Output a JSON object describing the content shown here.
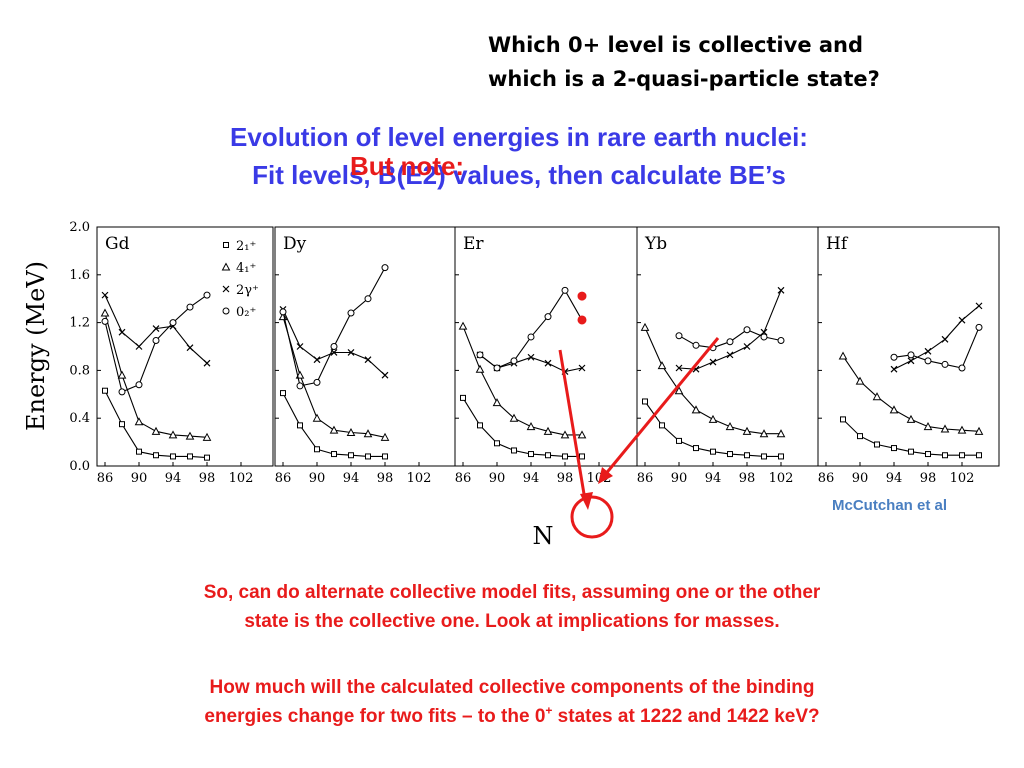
{
  "question": {
    "line1": "Which 0+ level is collective and",
    "line2": "which is a 2-quasi-particle state?"
  },
  "title": {
    "line1": "Evolution of level energies in rare earth nuclei:",
    "line2": "Fit levels, B(E2) values, then calculate BE’s"
  },
  "overlay_note": "But note:",
  "credit": "McCutchan et al",
  "paragraph1": {
    "line1": "So, can do alternate collective model fits, assuming one or the other",
    "line2": "state is the collective one.  Look at implications for masses."
  },
  "paragraph2": {
    "line1": "How much will the calculated collective components of the binding",
    "line2a": "energies change for two fits – to the 0",
    "sup": "+",
    "line2b": " states at 1222 and 1422 keV?"
  },
  "colors": {
    "title_blue": "#3a3ae6",
    "note_red": "#e81b1b",
    "credit_blue": "#4a7fc1"
  },
  "chart_data": {
    "type": "line",
    "ylabel": "Energy (MeV)",
    "xlabel": "N",
    "ylim": [
      0,
      2.0
    ],
    "yticks": [
      "2.0",
      "1.6",
      "1.2",
      "0.8",
      "0.4",
      "0.0"
    ],
    "legend": {
      "placement": "top-right of Gd panel",
      "entries": [
        "2₁⁺",
        "4₁⁺",
        "2γ⁺",
        "0₂⁺"
      ],
      "markers": [
        "square",
        "triangle",
        "cross",
        "circle"
      ]
    },
    "panels": [
      {
        "name": "Gd",
        "xticks": [
          "86",
          "90",
          "94",
          "98",
          "102"
        ],
        "series": [
          {
            "name": "2₁⁺",
            "x": [
              86,
              88,
              90,
              92,
              94,
              96,
              98
            ],
            "values": [
              0.63,
              0.35,
              0.12,
              0.09,
              0.08,
              0.08,
              0.07
            ]
          },
          {
            "name": "4₁⁺",
            "x": [
              86,
              88,
              90,
              92,
              94,
              96,
              98
            ],
            "values": [
              1.28,
              0.76,
              0.37,
              0.29,
              0.26,
              0.25,
              0.24
            ]
          },
          {
            "name": "2γ⁺",
            "x": [
              86,
              88,
              90,
              92,
              94,
              96,
              98
            ],
            "values": [
              1.43,
              1.12,
              1.0,
              1.15,
              1.17,
              0.99,
              0.86
            ]
          },
          {
            "name": "0₂⁺",
            "x": [
              86,
              88,
              90,
              92,
              94,
              96,
              98
            ],
            "values": [
              1.21,
              0.62,
              0.68,
              1.05,
              1.2,
              1.33,
              1.43
            ]
          }
        ]
      },
      {
        "name": "Dy",
        "xticks": [
          "86",
          "90",
          "94",
          "98",
          "102"
        ],
        "series": [
          {
            "name": "2₁⁺",
            "x": [
              86,
              88,
              90,
              92,
              94,
              96,
              98
            ],
            "values": [
              0.61,
              0.34,
              0.14,
              0.1,
              0.09,
              0.08,
              0.08
            ]
          },
          {
            "name": "4₁⁺",
            "x": [
              86,
              88,
              90,
              92,
              94,
              96,
              98
            ],
            "values": [
              1.25,
              0.76,
              0.4,
              0.3,
              0.28,
              0.27,
              0.24
            ]
          },
          {
            "name": "2γ⁺",
            "x": [
              86,
              88,
              90,
              92,
              94,
              96,
              98
            ],
            "values": [
              1.31,
              1.0,
              0.89,
              0.95,
              0.95,
              0.89,
              0.76
            ]
          },
          {
            "name": "0₂⁺",
            "x": [
              86,
              88,
              90,
              92,
              94,
              96,
              98
            ],
            "values": [
              1.29,
              0.67,
              0.7,
              1.0,
              1.28,
              1.4,
              1.66
            ]
          }
        ]
      },
      {
        "name": "Er",
        "xticks": [
          "86",
          "90",
          "94",
          "98",
          "102"
        ],
        "series": [
          {
            "name": "2₁⁺",
            "x": [
              86,
              88,
              90,
              92,
              94,
              96,
              98,
              100
            ],
            "values": [
              0.57,
              0.34,
              0.19,
              0.13,
              0.1,
              0.09,
              0.08,
              0.08
            ]
          },
          {
            "name": "4₁⁺",
            "x": [
              86,
              88,
              90,
              92,
              94,
              96,
              98,
              100
            ],
            "values": [
              1.17,
              0.81,
              0.53,
              0.4,
              0.33,
              0.29,
              0.26,
              0.26
            ]
          },
          {
            "name": "2γ⁺",
            "x": [
              88,
              90,
              92,
              94,
              96,
              98,
              100
            ],
            "values": [
              0.93,
              0.82,
              0.86,
              0.91,
              0.86,
              0.79,
              0.82
            ]
          },
          {
            "name": "0₂⁺",
            "x": [
              88,
              90,
              92,
              94,
              96,
              98,
              100
            ],
            "values": [
              0.93,
              0.82,
              0.88,
              1.08,
              1.25,
              1.47,
              1.22
            ]
          }
        ]
      },
      {
        "name": "Yb",
        "xticks": [
          "86",
          "90",
          "94",
          "98",
          "102"
        ],
        "series": [
          {
            "name": "2₁⁺",
            "x": [
              86,
              88,
              90,
              92,
              94,
              96,
              98,
              100,
              102
            ],
            "values": [
              0.54,
              0.34,
              0.21,
              0.15,
              0.12,
              0.1,
              0.09,
              0.08,
              0.08
            ]
          },
          {
            "name": "4₁⁺",
            "x": [
              86,
              88,
              90,
              92,
              94,
              96,
              98,
              100,
              102
            ],
            "values": [
              1.16,
              0.84,
              0.63,
              0.47,
              0.39,
              0.33,
              0.29,
              0.27,
              0.27
            ]
          },
          {
            "name": "2γ⁺",
            "x": [
              90,
              92,
              94,
              96,
              98,
              100,
              102
            ],
            "values": [
              0.82,
              0.81,
              0.87,
              0.93,
              1.0,
              1.12,
              1.47
            ]
          },
          {
            "name": "0₂⁺",
            "x": [
              90,
              92,
              94,
              96,
              98,
              100,
              102
            ],
            "values": [
              1.09,
              1.01,
              0.99,
              1.04,
              1.14,
              1.08,
              1.05
            ]
          }
        ]
      },
      {
        "name": "Hf",
        "xticks": [
          "86",
          "90",
          "94",
          "98",
          "102"
        ],
        "series": [
          {
            "name": "2₁⁺",
            "x": [
              88,
              90,
              92,
              94,
              96,
              98,
              100,
              102,
              104
            ],
            "values": [
              0.39,
              0.25,
              0.18,
              0.15,
              0.12,
              0.1,
              0.09,
              0.09,
              0.09
            ]
          },
          {
            "name": "4₁⁺",
            "x": [
              88,
              90,
              92,
              94,
              96,
              98,
              100,
              102,
              104
            ],
            "values": [
              0.92,
              0.71,
              0.58,
              0.47,
              0.39,
              0.33,
              0.31,
              0.3,
              0.29
            ]
          },
          {
            "name": "2γ⁺",
            "x": [
              94,
              96,
              98,
              100,
              102,
              104
            ],
            "values": [
              0.81,
              0.88,
              0.96,
              1.06,
              1.22,
              1.34
            ]
          },
          {
            "name": "0₂⁺",
            "x": [
              94,
              96,
              98,
              100,
              102,
              104
            ],
            "values": [
              0.91,
              0.93,
              0.88,
              0.85,
              0.82,
              1.16
            ]
          }
        ]
      }
    ],
    "highlighted_points": {
      "panel": "Er",
      "x": 100,
      "values": [
        1.422,
        1.222
      ]
    }
  }
}
